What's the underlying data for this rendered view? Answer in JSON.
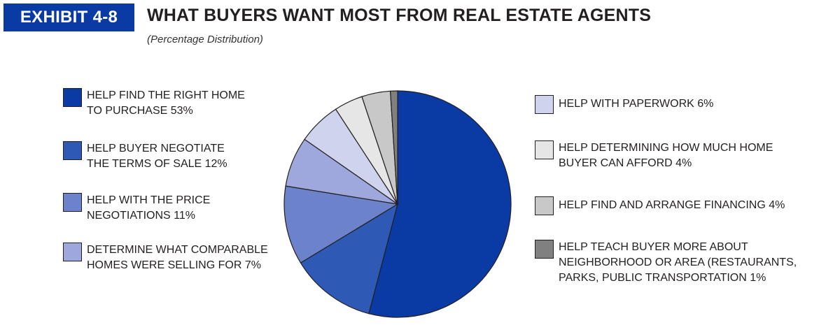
{
  "header": {
    "badge": "EXHIBIT 4-8",
    "title": "WHAT BUYERS WANT MOST FROM REAL ESTATE AGENTS",
    "subtitle": "(Percentage Distribution)"
  },
  "legend": {
    "left": [
      {
        "text": "HELP FIND THE RIGHT HOME\nTO PURCHASE  53%",
        "color": "#0a3aa3"
      },
      {
        "text": "HELP BUYER NEGOTIATE\nTHE TERMS OF SALE  12%",
        "color": "#2e5ab5"
      },
      {
        "text": "HELP WITH THE PRICE\nNEGOTIATIONS  11%",
        "color": "#6c82cb"
      },
      {
        "text": "DETERMINE WHAT COMPARABLE\nHOMES WERE SELLING FOR  7%",
        "color": "#9ea8dc"
      }
    ],
    "right": [
      {
        "text": "HELP WITH PAPERWORK  6%",
        "color": "#d0d3ee"
      },
      {
        "text": "HELP DETERMINING HOW MUCH HOME\nBUYER CAN AFFORD  4%",
        "color": "#e6e6e6"
      },
      {
        "text": "HELP FIND AND ARRANGE FINANCING  4%",
        "color": "#c8c8c8"
      },
      {
        "text": "HELP TEACH BUYER MORE ABOUT\nNEIGHBORHOOD OR AREA (RESTAURANTS,\nPARKS, PUBLIC TRANSPORTATION  1%",
        "color": "#808080"
      }
    ]
  },
  "chart_data": {
    "type": "pie",
    "title": "WHAT BUYERS WANT MOST FROM REAL ESTATE AGENTS",
    "subtitle": "(Percentage Distribution)",
    "categories": [
      "HELP FIND THE RIGHT HOME TO PURCHASE",
      "HELP BUYER NEGOTIATE THE TERMS OF SALE",
      "HELP WITH THE PRICE NEGOTIATIONS",
      "DETERMINE WHAT COMPARABLE HOMES WERE SELLING FOR",
      "HELP WITH PAPERWORK",
      "HELP DETERMINING HOW MUCH HOME BUYER CAN AFFORD",
      "HELP FIND AND ARRANGE FINANCING",
      "HELP TEACH BUYER MORE ABOUT NEIGHBORHOOD OR AREA (RESTAURANTS, PARKS, PUBLIC TRANSPORTATION"
    ],
    "values": [
      53,
      12,
      11,
      7,
      6,
      4,
      4,
      1
    ],
    "colors": [
      "#0a3aa3",
      "#2e5ab5",
      "#6c82cb",
      "#9ea8dc",
      "#d0d3ee",
      "#e6e6e6",
      "#c8c8c8",
      "#808080"
    ],
    "legend": "left and right"
  }
}
